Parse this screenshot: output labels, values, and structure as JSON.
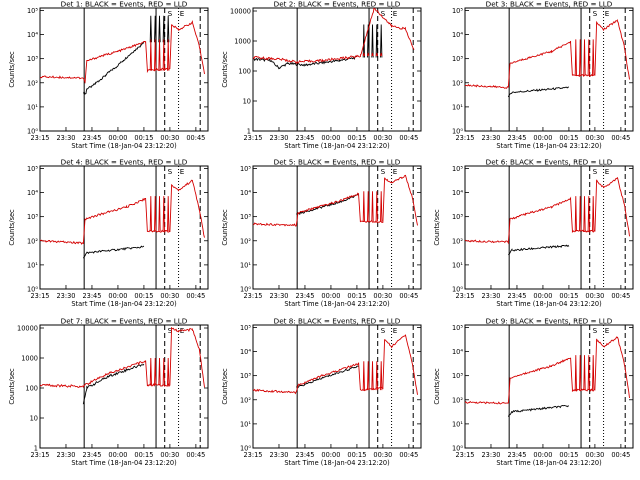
{
  "chart_data": [
    {
      "type": "line",
      "title": "Det 1: BLACK = Events, RED = LLD",
      "ylabel": "Counts/sec",
      "xlabel": "Start Time (18-Jan-04 23:12:20)",
      "yticks": [
        {
          "v": 0,
          "t": "10⁰"
        },
        {
          "v": 1,
          "t": "10¹"
        },
        {
          "v": 2,
          "t": "10²"
        },
        {
          "v": 3,
          "t": "10³"
        },
        {
          "v": 4,
          "t": "10⁴"
        },
        {
          "v": 5,
          "t": "10⁵"
        }
      ],
      "ylim": [
        0,
        5.1
      ],
      "xticks": [
        "23:15",
        "23:30",
        "23:45",
        "00:00",
        "00:15",
        "00:30",
        "00:45"
      ],
      "legend_marks": [
        "S",
        "E"
      ],
      "series": [
        {
          "name": "Events",
          "color": "#000000",
          "values": [
            [
              25,
              1.6
            ],
            [
              26.5,
              1.55
            ],
            [
              27,
              1.75
            ],
            [
              30,
              1.85
            ],
            [
              32,
              1.98
            ],
            [
              34,
              2.08
            ],
            [
              36,
              2.2
            ],
            [
              38,
              2.32
            ],
            [
              40,
              2.45
            ],
            [
              42,
              2.55
            ],
            [
              44,
              2.65
            ],
            [
              46,
              2.8
            ],
            [
              48,
              2.92
            ],
            [
              50,
              3.05
            ],
            [
              52,
              3.18
            ],
            [
              54,
              3.3
            ],
            [
              56,
              3.42
            ],
            [
              58,
              3.55
            ],
            [
              60,
              3.68
            ]
          ]
        },
        {
          "name": "LLD",
          "color": "#d40000",
          "values": [
            [
              0,
              2.25
            ],
            [
              25,
              2.2
            ],
            [
              26,
              2.0
            ],
            [
              27,
              2.9
            ],
            [
              35,
              3.1
            ],
            [
              45,
              3.3
            ],
            [
              55,
              3.55
            ],
            [
              61,
              3.7
            ],
            [
              62,
              2.5
            ],
            [
              75,
              2.6
            ],
            [
              76,
              4.4
            ],
            [
              80,
              4.2
            ],
            [
              88,
              4.5
            ],
            [
              92,
              3.5
            ],
            [
              95,
              2.4
            ]
          ]
        }
      ]
    },
    {
      "type": "line",
      "title": "Det 2: BLACK = Events, RED = LLD",
      "ylabel": "Counts/sec",
      "xlabel": "Start Time (18-Jan-04 23:12:20)",
      "yticks": [
        {
          "v": 0,
          "t": "1"
        },
        {
          "v": 1,
          "t": "10"
        },
        {
          "v": 2,
          "t": "100"
        },
        {
          "v": 3,
          "t": "1000"
        },
        {
          "v": 4,
          "t": "10000"
        }
      ],
      "ylim": [
        0,
        4.1
      ],
      "xticks": [
        "23:15",
        "23:30",
        "23:45",
        "00:00",
        "00:15",
        "00:30",
        "00:45"
      ],
      "legend_marks": [
        "S",
        "E"
      ],
      "series": [
        {
          "name": "Events",
          "color": "#000000",
          "values": [
            [
              0,
              2.4
            ],
            [
              10,
              2.35
            ],
            [
              15,
              2.1
            ],
            [
              20,
              2.25
            ],
            [
              30,
              2.2
            ],
            [
              50,
              2.35
            ],
            [
              60,
              2.45
            ]
          ]
        },
        {
          "name": "LLD",
          "color": "#d40000",
          "values": [
            [
              0,
              2.45
            ],
            [
              15,
              2.4
            ],
            [
              25,
              2.3
            ],
            [
              40,
              2.35
            ],
            [
              55,
              2.45
            ],
            [
              62,
              2.5
            ],
            [
              70,
              4.1
            ],
            [
              80,
              3.5
            ],
            [
              88,
              3.4
            ],
            [
              93,
              2.7
            ]
          ]
        }
      ]
    },
    {
      "type": "line",
      "title": "Det 3: BLACK = Events, RED = LLD",
      "ylabel": "",
      "xlabel": "Start Time (18-Jan-04 23:12:20)",
      "yticks": [
        {
          "v": 0,
          "t": "10⁰"
        },
        {
          "v": 1,
          "t": "10¹"
        },
        {
          "v": 2,
          "t": "10²"
        },
        {
          "v": 3,
          "t": "10³"
        },
        {
          "v": 4,
          "t": "10⁴"
        },
        {
          "v": 5,
          "t": "10⁵"
        }
      ],
      "ylim": [
        0,
        5.1
      ],
      "xticks": [
        "23:15",
        "23:30",
        "23:45",
        "00:00",
        "00:15",
        "00:30",
        "00:45"
      ],
      "legend_marks": [
        "S",
        "E"
      ],
      "series": [
        {
          "name": "Events",
          "color": "#000000",
          "values": [
            [
              25,
              1.4
            ],
            [
              27,
              1.6
            ],
            [
              60,
              1.8
            ]
          ]
        },
        {
          "name": "LLD",
          "color": "#d40000",
          "values": [
            [
              0,
              1.9
            ],
            [
              25,
              1.8
            ],
            [
              26,
              2.8
            ],
            [
              35,
              3.0
            ],
            [
              50,
              3.3
            ],
            [
              61,
              3.7
            ],
            [
              62,
              2.3
            ],
            [
              75,
              2.3
            ],
            [
              76,
              4.5
            ],
            [
              80,
              4.2
            ],
            [
              88,
              4.6
            ],
            [
              92,
              3.5
            ],
            [
              95,
              2.1
            ]
          ]
        }
      ]
    },
    {
      "type": "line",
      "title": "Det 4: BLACK = Events, RED = LLD",
      "ylabel": "Counts/sec",
      "xlabel": "Start Time (18-Jan-04 23:12:20)",
      "yticks": [
        {
          "v": 0,
          "t": "10⁰"
        },
        {
          "v": 1,
          "t": "10¹"
        },
        {
          "v": 2,
          "t": "10²"
        },
        {
          "v": 3,
          "t": "10³"
        },
        {
          "v": 4,
          "t": "10⁴"
        },
        {
          "v": 5,
          "t": "10⁵"
        }
      ],
      "ylim": [
        0,
        5.1
      ],
      "xticks": [
        "23:15",
        "23:30",
        "23:45",
        "00:00",
        "00:15",
        "00:30",
        "00:45"
      ],
      "legend_marks": [
        "S",
        "E"
      ],
      "series": [
        {
          "name": "Events",
          "color": "#000000",
          "values": [
            [
              25,
              1.3
            ],
            [
              27,
              1.5
            ],
            [
              60,
              1.75
            ]
          ]
        },
        {
          "name": "LLD",
          "color": "#d40000",
          "values": [
            [
              0,
              2.0
            ],
            [
              25,
              1.9
            ],
            [
              26,
              2.9
            ],
            [
              35,
              3.1
            ],
            [
              50,
              3.4
            ],
            [
              61,
              3.75
            ],
            [
              62,
              2.4
            ],
            [
              75,
              2.4
            ],
            [
              76,
              4.3
            ],
            [
              80,
              4.1
            ],
            [
              88,
              4.5
            ],
            [
              92,
              3.3
            ],
            [
              95,
              2.1
            ]
          ]
        }
      ]
    },
    {
      "type": "line",
      "title": "Det 5: BLACK = Events, RED = LLD",
      "ylabel": "Counts/sec",
      "xlabel": "Start Time (18-Jan-04 23:12:20)",
      "yticks": [
        {
          "v": 0,
          "t": "10⁰"
        },
        {
          "v": 1,
          "t": "10¹"
        },
        {
          "v": 2,
          "t": "10²"
        },
        {
          "v": 3,
          "t": "10³"
        },
        {
          "v": 4,
          "t": "10⁴"
        },
        {
          "v": 5,
          "t": "10⁵"
        }
      ],
      "ylim": [
        0,
        5.1
      ],
      "xticks": [
        "23:15",
        "23:30",
        "23:45",
        "00:00",
        "00:15",
        "00:30",
        "00:45"
      ],
      "legend_marks": [
        "S",
        "E"
      ],
      "series": [
        {
          "name": "Events",
          "color": "#000000",
          "values": [
            [
              25,
              3.1
            ],
            [
              35,
              3.3
            ],
            [
              50,
              3.6
            ],
            [
              61,
              3.9
            ]
          ]
        },
        {
          "name": "LLD",
          "color": "#d40000",
          "values": [
            [
              0,
              2.7
            ],
            [
              25,
              2.65
            ],
            [
              26,
              3.15
            ],
            [
              35,
              3.35
            ],
            [
              50,
              3.65
            ],
            [
              61,
              3.95
            ],
            [
              62,
              2.8
            ],
            [
              75,
              2.8
            ],
            [
              76,
              4.6
            ],
            [
              80,
              4.4
            ],
            [
              88,
              4.7
            ],
            [
              92,
              3.8
            ],
            [
              95,
              2.6
            ]
          ]
        }
      ]
    },
    {
      "type": "line",
      "title": "Det 6: BLACK = Events, RED = LLD",
      "ylabel": "Counts/sec",
      "xlabel": "Start Time (18-Jan-04 23:12:20)",
      "yticks": [
        {
          "v": 0,
          "t": "10⁰"
        },
        {
          "v": 1,
          "t": "10¹"
        },
        {
          "v": 2,
          "t": "10²"
        },
        {
          "v": 3,
          "t": "10³"
        },
        {
          "v": 4,
          "t": "10⁴"
        },
        {
          "v": 5,
          "t": "10⁵"
        }
      ],
      "ylim": [
        0,
        5.1
      ],
      "xticks": [
        "23:15",
        "23:30",
        "23:45",
        "00:00",
        "00:15",
        "00:30",
        "00:45"
      ],
      "legend_marks": [
        "S",
        "E"
      ],
      "series": [
        {
          "name": "Events",
          "color": "#000000",
          "values": [
            [
              25,
              1.4
            ],
            [
              27,
              1.6
            ],
            [
              60,
              1.8
            ]
          ]
        },
        {
          "name": "LLD",
          "color": "#d40000",
          "values": [
            [
              0,
              2.0
            ],
            [
              25,
              1.95
            ],
            [
              26,
              2.9
            ],
            [
              35,
              3.1
            ],
            [
              50,
              3.4
            ],
            [
              61,
              3.75
            ],
            [
              62,
              2.4
            ],
            [
              75,
              2.4
            ],
            [
              76,
              4.5
            ],
            [
              80,
              4.2
            ],
            [
              88,
              4.6
            ],
            [
              92,
              3.5
            ],
            [
              95,
              2.2
            ]
          ]
        }
      ]
    },
    {
      "type": "line",
      "title": "Det 7: BLACK = Events, RED = LLD",
      "ylabel": "Counts/sec",
      "xlabel": "Start Time (18-Jan-04 23:12:20)",
      "yticks": [
        {
          "v": 0,
          "t": "1"
        },
        {
          "v": 1,
          "t": "10"
        },
        {
          "v": 2,
          "t": "100"
        },
        {
          "v": 3,
          "t": "1000"
        },
        {
          "v": 4,
          "t": "10000"
        }
      ],
      "ylim": [
        0,
        4.1
      ],
      "xticks": [
        "23:15",
        "23:30",
        "23:45",
        "00:00",
        "00:15",
        "00:30",
        "00:45"
      ],
      "legend_marks": [
        "S",
        "E"
      ],
      "series": [
        {
          "name": "Events",
          "color": "#000000",
          "values": [
            [
              25,
              1.5
            ],
            [
              27,
              2.0
            ],
            [
              40,
              2.4
            ],
            [
              60,
              2.8
            ]
          ]
        },
        {
          "name": "LLD",
          "color": "#d40000",
          "values": [
            [
              0,
              2.1
            ],
            [
              25,
              2.05
            ],
            [
              26,
              2.1
            ],
            [
              40,
              2.5
            ],
            [
              61,
              2.9
            ],
            [
              62,
              2.1
            ],
            [
              75,
              2.1
            ],
            [
              76,
              4.0
            ],
            [
              80,
              3.9
            ],
            [
              88,
              3.95
            ],
            [
              92,
              3.3
            ],
            [
              95,
              2.0
            ]
          ]
        }
      ]
    },
    {
      "type": "line",
      "title": "Det 8: BLACK = Events, RED = LLD",
      "ylabel": "Counts/sec",
      "xlabel": "Start Time (18-Jan-04 23:12:20)",
      "yticks": [
        {
          "v": 0,
          "t": "10⁰"
        },
        {
          "v": 1,
          "t": "10¹"
        },
        {
          "v": 2,
          "t": "10²"
        },
        {
          "v": 3,
          "t": "10³"
        },
        {
          "v": 4,
          "t": "10⁴"
        },
        {
          "v": 5,
          "t": "10⁵"
        }
      ],
      "ylim": [
        0,
        5.1
      ],
      "xticks": [
        "23:15",
        "23:30",
        "23:45",
        "00:00",
        "00:15",
        "00:30",
        "00:45"
      ],
      "legend_marks": [
        "S",
        "E"
      ],
      "series": [
        {
          "name": "Events",
          "color": "#000000",
          "values": [
            [
              25,
              2.5
            ],
            [
              40,
              2.9
            ],
            [
              61,
              3.4
            ]
          ]
        },
        {
          "name": "LLD",
          "color": "#d40000",
          "values": [
            [
              0,
              2.4
            ],
            [
              25,
              2.3
            ],
            [
              26,
              2.6
            ],
            [
              40,
              3.0
            ],
            [
              61,
              3.5
            ],
            [
              62,
              2.4
            ],
            [
              75,
              2.5
            ],
            [
              76,
              4.5
            ],
            [
              80,
              4.2
            ],
            [
              88,
              4.7
            ],
            [
              92,
              3.5
            ],
            [
              95,
              2.2
            ]
          ]
        }
      ]
    },
    {
      "type": "line",
      "title": "Det 9: BLACK = Events, RED = LLD",
      "ylabel": "Counts/sec",
      "xlabel": "Start Time (18-Jan-04 23:12:20)",
      "yticks": [
        {
          "v": 0,
          "t": "10⁰"
        },
        {
          "v": 1,
          "t": "10¹"
        },
        {
          "v": 2,
          "t": "10²"
        },
        {
          "v": 3,
          "t": "10³"
        },
        {
          "v": 4,
          "t": "10⁴"
        },
        {
          "v": 5,
          "t": "10⁵"
        }
      ],
      "ylim": [
        0,
        5.1
      ],
      "xticks": [
        "23:15",
        "23:30",
        "23:45",
        "00:00",
        "00:15",
        "00:30",
        "00:45"
      ],
      "legend_marks": [
        "S",
        "E"
      ],
      "series": [
        {
          "name": "Events",
          "color": "#000000",
          "values": [
            [
              25,
              1.3
            ],
            [
              27,
              1.5
            ],
            [
              60,
              1.75
            ]
          ]
        },
        {
          "name": "LLD",
          "color": "#d40000",
          "values": [
            [
              0,
              1.9
            ],
            [
              25,
              1.85
            ],
            [
              26,
              2.9
            ],
            [
              35,
              3.1
            ],
            [
              50,
              3.4
            ],
            [
              61,
              3.75
            ],
            [
              62,
              2.4
            ],
            [
              75,
              2.4
            ],
            [
              76,
              4.5
            ],
            [
              80,
              4.2
            ],
            [
              88,
              4.6
            ],
            [
              92,
              3.5
            ],
            [
              95,
              2.1
            ]
          ]
        }
      ]
    }
  ]
}
